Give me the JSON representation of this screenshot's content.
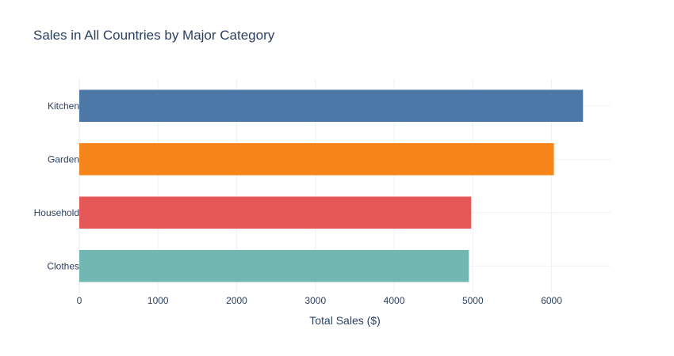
{
  "chart_data": {
    "type": "bar",
    "orientation": "horizontal",
    "title": "Sales in All Countries by Major Category",
    "xlabel": "Total Sales ($)",
    "ylabel": "",
    "categories": [
      "Clothes",
      "Household",
      "Garden",
      "Kitchen"
    ],
    "values": [
      4950,
      4980,
      6030,
      6400
    ],
    "colors": [
      "#72b7b2",
      "#e45756",
      "#f58518",
      "#4c78a8"
    ],
    "xlim": [
      0,
      6750
    ],
    "xticks": [
      0,
      1000,
      2000,
      3000,
      4000,
      5000,
      6000
    ],
    "xtick_labels": [
      "0",
      "1000",
      "2000",
      "3000",
      "4000",
      "5000",
      "6000"
    ],
    "grid": true,
    "legend": false
  }
}
